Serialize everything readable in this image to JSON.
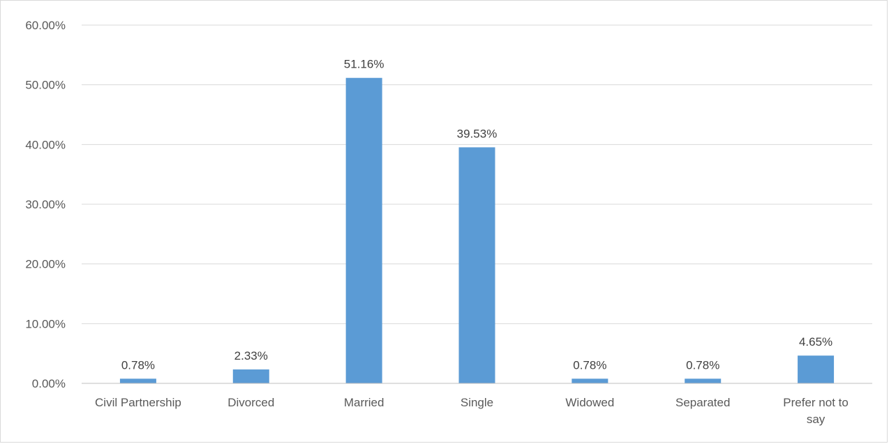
{
  "chart_data": {
    "type": "bar",
    "categories": [
      [
        "Civil Partnership"
      ],
      [
        "Divorced"
      ],
      [
        "Married"
      ],
      [
        "Single"
      ],
      [
        "Widowed"
      ],
      [
        "Separated"
      ],
      [
        "Prefer not to",
        "say"
      ]
    ],
    "values": [
      0.78,
      2.33,
      51.16,
      39.53,
      0.78,
      0.78,
      4.65
    ],
    "data_labels": [
      "0.78%",
      "2.33%",
      "51.16%",
      "39.53%",
      "0.78%",
      "0.78%",
      "4.65%"
    ],
    "y_ticks": [
      0,
      10,
      20,
      30,
      40,
      50,
      60
    ],
    "y_tick_labels": [
      "0.00%",
      "10.00%",
      "20.00%",
      "30.00%",
      "40.00%",
      "50.00%",
      "60.00%"
    ],
    "ylim": [
      0,
      60
    ],
    "grid": true,
    "colors": {
      "bar": "#5b9bd5",
      "grid": "#d9d9d9",
      "axis": "#bfbfbf",
      "text": "#595959"
    }
  }
}
